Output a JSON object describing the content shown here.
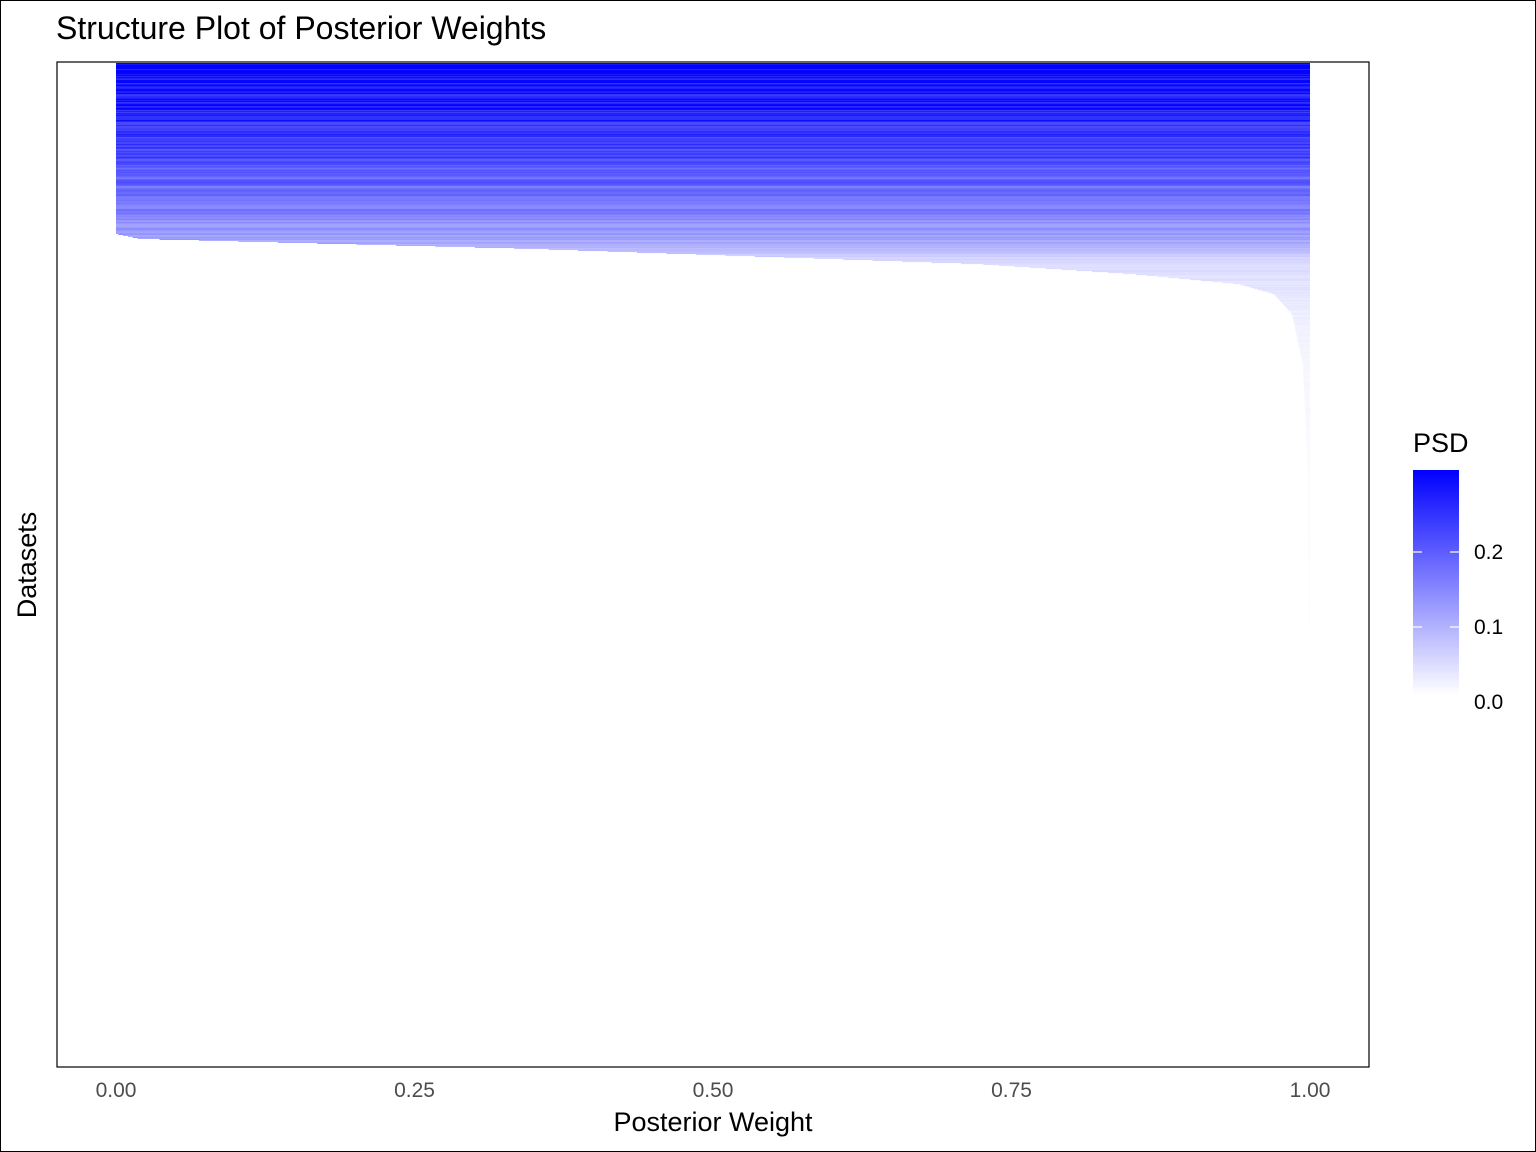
{
  "chart_data": {
    "type": "heatmap",
    "subtype": "structure-plot",
    "title": "Structure Plot of Posterior Weights",
    "xlabel": "Posterior Weight",
    "ylabel": "Datasets",
    "xlim": [
      0,
      1
    ],
    "x_ticks": [
      "0.00",
      "0.25",
      "0.50",
      "0.75",
      "1.00"
    ],
    "x_tick_values": [
      0,
      0.25,
      0.5,
      0.75,
      1.0
    ],
    "y_ticks": [],
    "grid": false,
    "legend": {
      "title": "PSD",
      "placement": "right",
      "ticks": [
        "0.0",
        "0.1",
        "0.2"
      ],
      "tick_values": [
        0.0,
        0.1,
        0.2
      ],
      "range": [
        0,
        0.3
      ],
      "low_color": "#ffffff",
      "high_color": "#0000ff"
    },
    "colors": {
      "low": "#ffffff",
      "high": "#0000ff",
      "axis": "#000000",
      "tick_text": "#4d4d4d"
    },
    "n_datasets": 1000,
    "sorting": "descending by PSD, then ascending by posterior weight",
    "weight_profile": {
      "fraction_of_datasets": [
        0.0,
        0.17,
        0.175,
        0.185,
        0.2,
        0.21,
        0.22,
        0.23,
        0.25,
        0.3,
        0.4,
        0.55,
        0.75,
        1.0
      ],
      "posterior_weight": [
        0.0,
        0.0,
        0.02,
        0.35,
        0.72,
        0.85,
        0.94,
        0.97,
        0.985,
        0.994,
        0.998,
        0.999,
        0.9995,
        1.0
      ]
    },
    "psd_profile": {
      "fraction_of_datasets": [
        0.0,
        0.05,
        0.1,
        0.15,
        0.175,
        0.2,
        0.25,
        0.3,
        0.5,
        1.0
      ],
      "psd": [
        0.3,
        0.26,
        0.2,
        0.15,
        0.11,
        0.04,
        0.02,
        0.01,
        0.003,
        0.0
      ]
    }
  }
}
